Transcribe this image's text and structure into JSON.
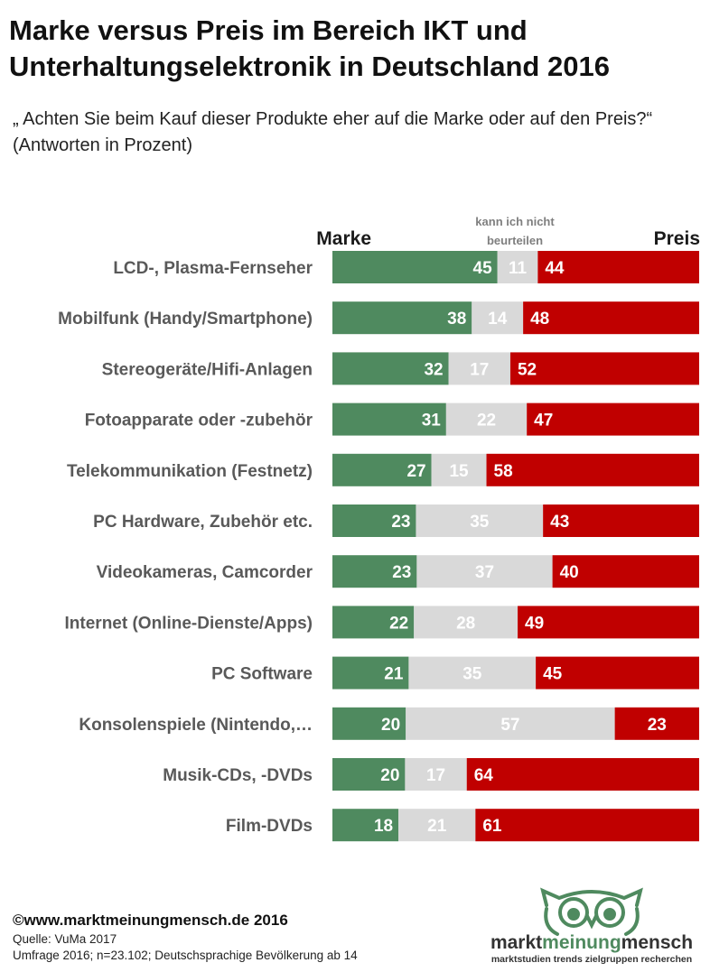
{
  "title": "Marke versus Preis im  Bereich IKT und Unterhaltungselektronik in Deutschland 2016",
  "subtitle": "„ Achten Sie beim Kauf dieser Produkte eher auf die Marke oder auf den Preis?“ (Antworten in Prozent)",
  "colors": {
    "marke": "#4f8a5f",
    "neutral": "#d9d9d9",
    "preis": "#c00000"
  },
  "chart_data": {
    "type": "bar",
    "orientation": "horizontal",
    "stacked": true,
    "headers": {
      "marke": "Marke",
      "neutral": "kann ich nicht beurteilen",
      "preis": "Preis"
    },
    "categories": [
      "LCD-, Plasma-Fernseher",
      "Mobilfunk (Handy/Smartphone)",
      "Stereogeräte/Hifi-Anlagen",
      "Fotoapparate oder -zubehör",
      "Telekommunikation (Festnetz)",
      "PC Hardware, Zubehör etc.",
      "Videokameras, Camcorder",
      "Internet (Online-Dienste/Apps)",
      "PC Software",
      "Konsolenspiele (Nintendo,…",
      "Musik-CDs, -DVDs",
      "Film-DVDs"
    ],
    "series": [
      {
        "name": "Marke",
        "values": [
          45,
          38,
          32,
          31,
          27,
          23,
          23,
          22,
          21,
          20,
          20,
          18
        ]
      },
      {
        "name": "kann ich nicht beurteilen",
        "values": [
          11,
          14,
          17,
          22,
          15,
          35,
          37,
          28,
          35,
          57,
          17,
          21
        ]
      },
      {
        "name": "Preis",
        "values": [
          44,
          48,
          52,
          47,
          58,
          43,
          40,
          49,
          45,
          23,
          64,
          61
        ]
      }
    ],
    "grid": false,
    "legend": "top"
  },
  "footer": {
    "copyright": "©www.marktmeinungmensch.de 2016",
    "source": "Quelle: VuMa 2017",
    "survey": "Umfrage 2016; n=23.102; Deutschsprachige Bevölkerung ab 14"
  },
  "logo": {
    "word1": "markt",
    "word2": "meinung",
    "word3": "mensch",
    "tagline": "marktstudien trends zielgruppen recherchen"
  }
}
